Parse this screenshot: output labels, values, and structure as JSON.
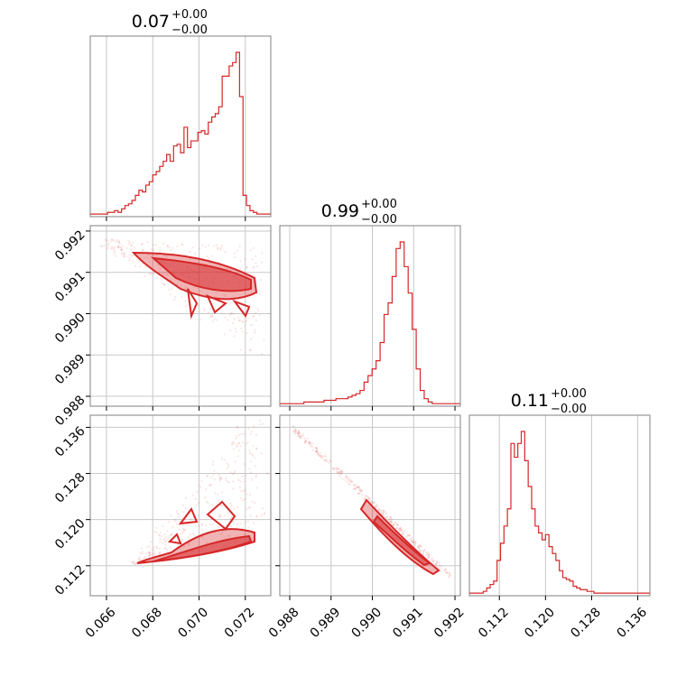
{
  "accent_color": "#d62728",
  "chart_data": {
    "type": "corner",
    "grid": true,
    "panels": [
      {
        "id": "hist-1",
        "type": "histogram",
        "title": {
          "value": "0.07",
          "plus": "+0.00",
          "minus": "−0.00"
        },
        "xlim": [
          0.0653,
          0.0731
        ],
        "x_bin_start": 0.0653,
        "bin_width": 0.00015,
        "counts": [
          1,
          1,
          1,
          1,
          1,
          2,
          2,
          3,
          2,
          4,
          6,
          7,
          9,
          12,
          15,
          14,
          18,
          20,
          24,
          26,
          29,
          32,
          36,
          32,
          41,
          42,
          37,
          52,
          40,
          44,
          44,
          49,
          50,
          48,
          55,
          58,
          60,
          64,
          82,
          82,
          88,
          90,
          96,
          70,
          12,
          6,
          3,
          2,
          1,
          1,
          1,
          1
        ]
      },
      {
        "id": "hist-2",
        "type": "histogram",
        "title": {
          "value": "0.99",
          "plus": "+0.00",
          "minus": "−0.00"
        },
        "xlim": [
          0.98776,
          0.99213
        ],
        "x_bin_start": 0.98776,
        "bin_width": 9.71e-05,
        "counts": [
          1,
          1,
          1,
          1,
          1,
          1,
          2,
          2,
          2,
          2,
          2,
          3,
          3,
          3,
          4,
          4,
          4,
          5,
          6,
          7,
          9,
          14,
          18,
          22,
          27,
          38,
          55,
          62,
          78,
          95,
          99,
          84,
          68,
          46,
          22,
          9,
          4,
          2,
          1,
          1,
          1,
          1,
          1,
          1,
          1
        ]
      },
      {
        "id": "hist-3",
        "type": "histogram",
        "title": {
          "value": "0.11",
          "plus": "+0.00",
          "minus": "−0.00"
        },
        "xlim": [
          0.1068,
          0.1381
        ],
        "x_bin_start": 0.1068,
        "bin_width": 0.0006,
        "counts": [
          1,
          1,
          1,
          1,
          2,
          4,
          6,
          8,
          20,
          30,
          40,
          50,
          88,
          80,
          88,
          95,
          78,
          63,
          50,
          40,
          36,
          32,
          35,
          28,
          24,
          20,
          14,
          10,
          9,
          8,
          5,
          4,
          3,
          3,
          2,
          2,
          1,
          1,
          1,
          1,
          1,
          1,
          1,
          1,
          1,
          1,
          1,
          1,
          1,
          1,
          1,
          1,
          1
        ]
      },
      {
        "id": "scatter-2-1",
        "type": "2d-contour",
        "xlim": [
          0.0653,
          0.0731
        ],
        "ylim": [
          0.98776,
          0.99213
        ]
      },
      {
        "id": "scatter-3-1",
        "type": "2d-contour",
        "xlim": [
          0.0653,
          0.0731
        ],
        "ylim": [
          0.1068,
          0.1381
        ]
      },
      {
        "id": "scatter-3-2",
        "type": "2d-contour",
        "xlim": [
          0.98776,
          0.99213
        ],
        "ylim": [
          0.1068,
          0.1381
        ]
      }
    ],
    "axes": {
      "p1_ticks": [
        "0.066",
        "0.068",
        "0.070",
        "0.072"
      ],
      "p1_tick_values": [
        0.066,
        0.068,
        0.07,
        0.072
      ],
      "p2_ticks": [
        "0.988",
        "0.989",
        "0.990",
        "0.991",
        "0.992"
      ],
      "p2_tick_values": [
        0.988,
        0.989,
        0.99,
        0.991,
        0.992
      ],
      "p3_ticks": [
        "0.112",
        "0.120",
        "0.128",
        "0.136"
      ],
      "p3_tick_values": [
        0.112,
        0.12,
        0.128,
        0.136
      ]
    }
  }
}
